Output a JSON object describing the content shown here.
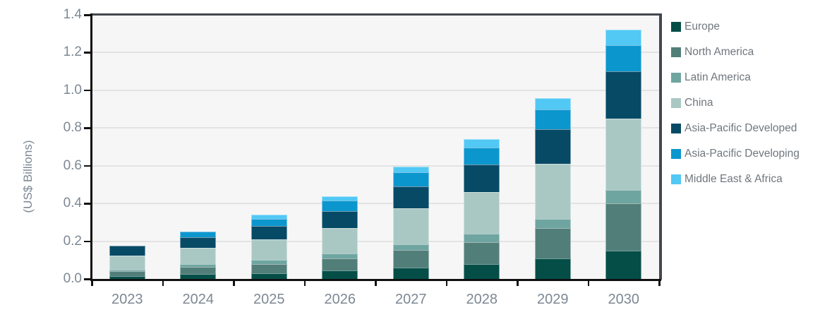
{
  "chart_data": {
    "type": "bar",
    "variant": "stacked-column",
    "title": "",
    "ylabel": "(US$ Billions)",
    "xlabel": "",
    "categories": [
      "2023",
      "2024",
      "2025",
      "2026",
      "2027",
      "2028",
      "2029",
      "2030"
    ],
    "series": [
      {
        "name": "Europe",
        "color": "#054E48",
        "values": [
          0.015,
          0.025,
          0.03,
          0.045,
          0.06,
          0.08,
          0.11,
          0.15
        ]
      },
      {
        "name": "North America",
        "color": "#527E79",
        "values": [
          0.025,
          0.04,
          0.05,
          0.065,
          0.095,
          0.115,
          0.16,
          0.25
        ]
      },
      {
        "name": "Latin America",
        "color": "#6FA5A0",
        "values": [
          0.01,
          0.015,
          0.02,
          0.025,
          0.03,
          0.045,
          0.05,
          0.07
        ]
      },
      {
        "name": "China",
        "color": "#A9C8C4",
        "values": [
          0.075,
          0.085,
          0.11,
          0.135,
          0.19,
          0.22,
          0.29,
          0.38
        ]
      },
      {
        "name": "Asia-Pacific Developed",
        "color": "#074A66",
        "values": [
          0.05,
          0.055,
          0.07,
          0.09,
          0.115,
          0.145,
          0.185,
          0.25
        ]
      },
      {
        "name": "Asia-Pacific Developing",
        "color": "#0C96CE",
        "values": [
          0,
          0.03,
          0.04,
          0.055,
          0.075,
          0.09,
          0.105,
          0.14
        ]
      },
      {
        "name": "Middle East & Africa",
        "color": "#52C8F5",
        "values": [
          0,
          0,
          0.02,
          0.025,
          0.03,
          0.045,
          0.06,
          0.08
        ]
      }
    ],
    "stacked_totals": [
      0.175,
      0.25,
      0.34,
      0.44,
      0.6,
      0.74,
      0.96,
      1.32
    ],
    "yticks": [
      "1.4",
      "1.2",
      "1.0",
      "0.8",
      "0.6",
      "0.4",
      "0.2",
      "0.0"
    ],
    "ylim": [
      0,
      1.4
    ],
    "grid": true,
    "legend_position": "right",
    "colors": {
      "plot_background": "#f6f6f6",
      "page_background": "#ffffff",
      "gridline": "#e3e3e4",
      "axis_spine": "#101010",
      "plot_border_top_right": "#43484e",
      "tick_label": "#7d8894",
      "legend_text": "#70777d"
    }
  }
}
